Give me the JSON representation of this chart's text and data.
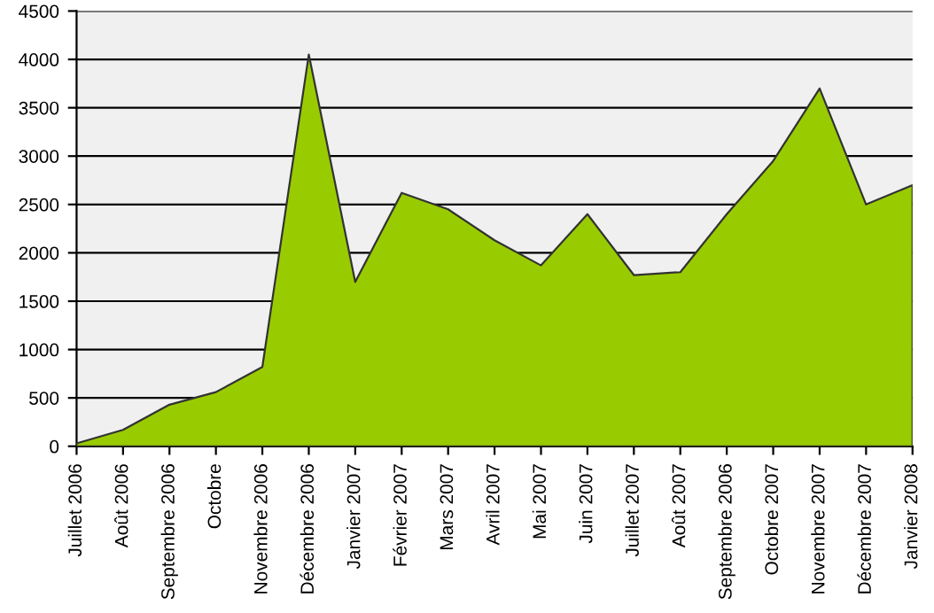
{
  "chart_data": {
    "type": "area",
    "categories": [
      "Juillet 2006",
      "Août 2006",
      "Septembre 2006",
      "Octobre",
      "Novembre 2006",
      "Décembre 2006",
      "Janvier 2007",
      "Février 2007",
      "Mars 2007",
      "Avril 2007",
      "Mai 2007",
      "Juin 2007",
      "Juillet 2007",
      "Août 2007",
      "Septembre 2006",
      "Octobre 2007",
      "Novembre 2007",
      "Décembre 2007",
      "Janvier 2008"
    ],
    "series": [
      {
        "color": "#99cc00",
        "values": [
          30,
          170,
          430,
          560,
          820,
          4050,
          1700,
          2620,
          2450,
          2130,
          1870,
          2400,
          1770,
          1800,
          2400,
          2950,
          3700,
          2500,
          2700
        ]
      }
    ],
    "ylim": [
      0,
      4500
    ],
    "yticks": [
      0,
      500,
      1000,
      1500,
      2000,
      2500,
      3000,
      3500,
      4000,
      4500
    ],
    "grid": "y",
    "legend": false
  }
}
